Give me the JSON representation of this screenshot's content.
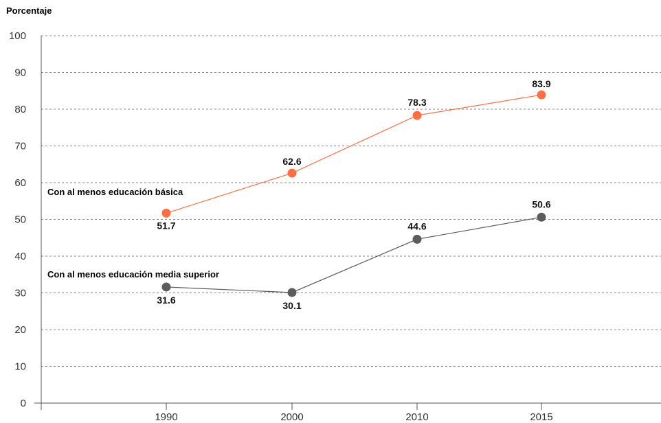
{
  "chart_data": {
    "type": "line",
    "ylabel": "Porcentaje",
    "xlabel": "",
    "title": "",
    "ylim": [
      0,
      100
    ],
    "yticks": [
      "0",
      "10",
      "20",
      "30",
      "40",
      "50",
      "60",
      "70",
      "80",
      "90",
      "100"
    ],
    "categories": [
      "1990",
      "2000",
      "2010",
      "2015"
    ],
    "grid": true,
    "series": [
      {
        "name": "Con al menos educación básica",
        "values": [
          51.7,
          62.6,
          78.3,
          83.9
        ],
        "labels": [
          "51.7",
          "62.6",
          "78.3",
          "83.9"
        ],
        "color": "#ff6f47"
      },
      {
        "name": "Con al menos educación media superior",
        "values": [
          31.6,
          30.1,
          44.6,
          50.6
        ],
        "labels": [
          "31.6",
          "30.1",
          "44.6",
          "50.6"
        ],
        "color": "#5c5c5c"
      }
    ]
  }
}
